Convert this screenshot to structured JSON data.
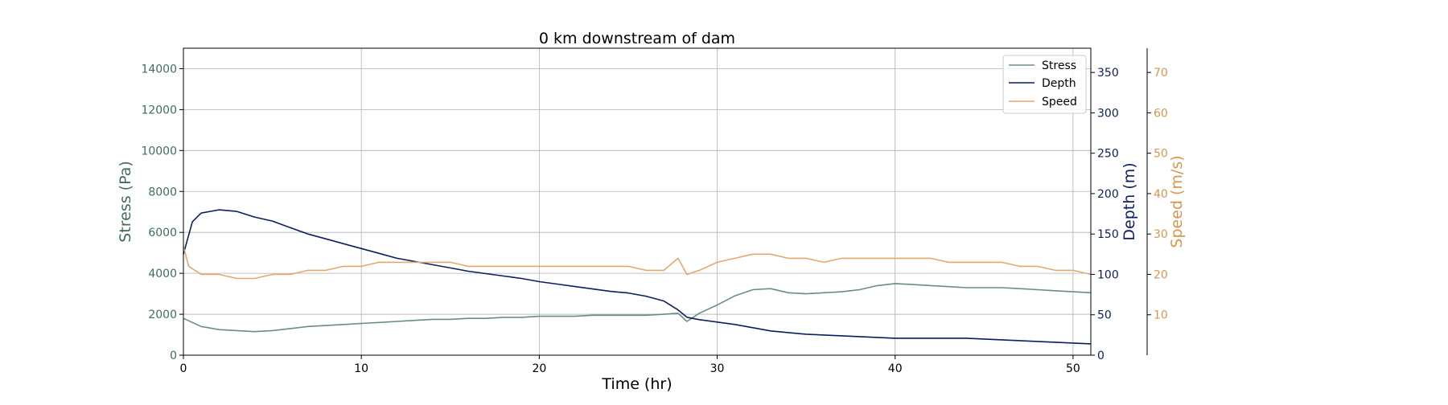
{
  "chart_data": {
    "type": "line",
    "title": "0 km downstream of dam",
    "xlabel": "Time (hr)",
    "xlim": [
      0,
      51
    ],
    "x_ticks": [
      "0",
      "10",
      "20",
      "30",
      "40",
      "50"
    ],
    "grid": true,
    "legend_position": "top-right",
    "axes": {
      "stress": {
        "label": "Stress (Pa)",
        "color": "#3f7055",
        "ylim": [
          0,
          15000
        ],
        "ticks": [
          "0",
          "2000",
          "4000",
          "6000",
          "8000",
          "10000",
          "12000",
          "14000"
        ]
      },
      "depth": {
        "label": "Depth (m)",
        "color": "#0b1f5e",
        "ylim": [
          0,
          380
        ],
        "ticks": [
          "0",
          "50",
          "100",
          "150",
          "200",
          "250",
          "300",
          "350"
        ]
      },
      "speed": {
        "label": "Speed (m/s)",
        "color": "#d9964a",
        "ylim": [
          0,
          76
        ],
        "ticks": [
          "10",
          "20",
          "30",
          "40",
          "50",
          "60",
          "70"
        ]
      }
    },
    "series": [
      {
        "name": "Stress",
        "axis": "stress",
        "color": "#6a8f78",
        "x": [
          0,
          1,
          2,
          3,
          4,
          5,
          6,
          7,
          8,
          9,
          10,
          11,
          12,
          13,
          14,
          15,
          16,
          17,
          18,
          19,
          20,
          21,
          22,
          23,
          24,
          25,
          26,
          27,
          27.8,
          28.3,
          29,
          30,
          31,
          32,
          33,
          34,
          35,
          36,
          37,
          38,
          39,
          40,
          41,
          42,
          43,
          44,
          45,
          46,
          47,
          48,
          49,
          50,
          51
        ],
        "values": [
          1800,
          1400,
          1250,
          1200,
          1150,
          1200,
          1300,
          1400,
          1450,
          1500,
          1550,
          1600,
          1650,
          1700,
          1750,
          1750,
          1800,
          1800,
          1850,
          1850,
          1900,
          1900,
          1900,
          1950,
          1950,
          1950,
          1950,
          2000,
          2050,
          1650,
          2050,
          2450,
          2900,
          3200,
          3250,
          3050,
          3000,
          3050,
          3100,
          3200,
          3400,
          3500,
          3450,
          3400,
          3350,
          3300,
          3300,
          3300,
          3250,
          3200,
          3150,
          3100,
          3050
        ]
      },
      {
        "name": "Depth",
        "axis": "depth",
        "color": "#0b1f5e",
        "x": [
          0,
          0.5,
          1,
          2,
          3,
          4,
          5,
          6,
          7,
          8,
          9,
          10,
          11,
          12,
          13,
          14,
          15,
          16,
          17,
          18,
          19,
          20,
          21,
          22,
          23,
          24,
          25,
          26,
          27,
          27.8,
          28.3,
          29,
          30,
          31,
          32,
          33,
          34,
          35,
          36,
          37,
          38,
          39,
          40,
          41,
          42,
          43,
          44,
          45,
          46,
          47,
          48,
          49,
          50,
          51
        ],
        "values": [
          125,
          165,
          176,
          180,
          178,
          171,
          166,
          158,
          150,
          144,
          138,
          132,
          126,
          120,
          116,
          112,
          108,
          104,
          101,
          98,
          95,
          91,
          88,
          85,
          82,
          79,
          77,
          73,
          67,
          56,
          47,
          44,
          41,
          38,
          34,
          30,
          28,
          26,
          25,
          24,
          23,
          22,
          21,
          21,
          21,
          21,
          21,
          20,
          19,
          18,
          17,
          16,
          15,
          14
        ]
      },
      {
        "name": "Speed",
        "axis": "speed",
        "color": "#e0aa6e",
        "x": [
          0,
          0.3,
          1,
          2,
          3,
          4,
          5,
          6,
          7,
          8,
          9,
          10,
          11,
          12,
          13,
          14,
          15,
          16,
          17,
          18,
          19,
          20,
          21,
          22,
          23,
          24,
          25,
          26,
          27,
          27.8,
          28.3,
          29,
          30,
          31,
          32,
          33,
          34,
          35,
          36,
          37,
          38,
          39,
          40,
          41,
          42,
          43,
          44,
          45,
          46,
          47,
          48,
          49,
          50,
          51
        ],
        "values": [
          27,
          22,
          20,
          20,
          19,
          19,
          20,
          20,
          21,
          21,
          22,
          22,
          23,
          23,
          23,
          23,
          23,
          22,
          22,
          22,
          22,
          22,
          22,
          22,
          22,
          22,
          22,
          21,
          21,
          24,
          20,
          21,
          23,
          24,
          25,
          25,
          24,
          24,
          23,
          24,
          24,
          24,
          24,
          24,
          24,
          23,
          23,
          23,
          23,
          22,
          22,
          21,
          21,
          20
        ]
      }
    ]
  }
}
